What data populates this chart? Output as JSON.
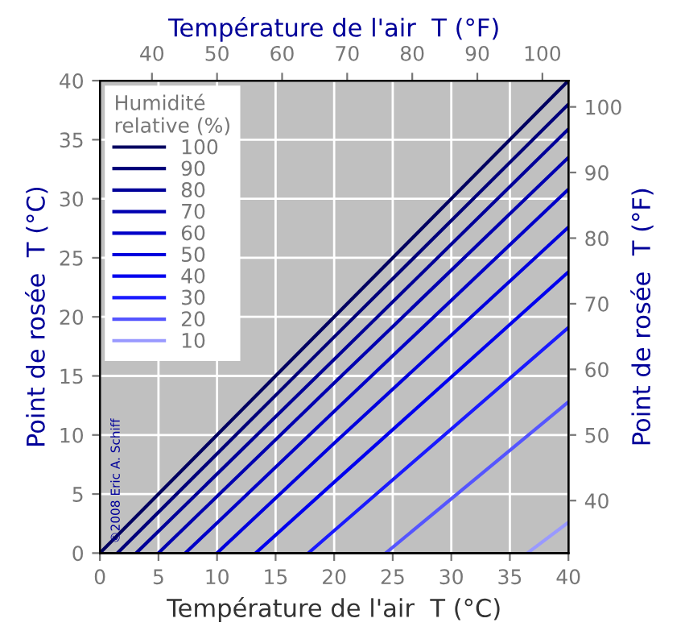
{
  "chart_data": {
    "type": "line",
    "xlabel": "Température de l'air  T (°C)",
    "ylabel": "Point de rosée  T (°C)",
    "x2label": "Température de l'air  T (°F)",
    "y2label": "Point de rosée  T (°F)",
    "legend_title": "Humidité\nrelative (%)",
    "legend": "top left",
    "grid": true,
    "xlim": [
      0,
      40
    ],
    "xticks": [
      0,
      5,
      10,
      15,
      20,
      25,
      30,
      35,
      40
    ],
    "ylim": [
      0,
      40
    ],
    "yticks": [
      0,
      5,
      10,
      15,
      20,
      25,
      30,
      35,
      40
    ],
    "x2lim": [
      32,
      104
    ],
    "x2ticks": [
      40,
      50,
      60,
      70,
      80,
      90,
      100
    ],
    "y2lim": [
      32,
      104
    ],
    "y2ticks": [
      40,
      50,
      60,
      70,
      80,
      90,
      100
    ],
    "annotations": [
      "©2008 Eric A. Schiff"
    ],
    "series": [
      {
        "name": "100",
        "color": "#000060",
        "x": [
          0,
          20,
          40
        ],
        "values": [
          0,
          20,
          40
        ]
      },
      {
        "name": "90",
        "color": "#00007a",
        "x": [
          1.5,
          20,
          40
        ],
        "values": [
          0,
          18.3,
          38
        ]
      },
      {
        "name": "80",
        "color": "#000099",
        "x": [
          3.1,
          20,
          40
        ],
        "values": [
          0,
          16.4,
          35.9
        ]
      },
      {
        "name": "70",
        "color": "#0000b0",
        "x": [
          5,
          20,
          40
        ],
        "values": [
          0,
          14.4,
          33.5
        ]
      },
      {
        "name": "60",
        "color": "#0000c8",
        "x": [
          7.3,
          20,
          40
        ],
        "values": [
          0,
          12,
          30.8
        ]
      },
      {
        "name": "50",
        "color": "#0000dd",
        "x": [
          10,
          20,
          40
        ],
        "values": [
          0,
          9.3,
          27.6
        ]
      },
      {
        "name": "40",
        "color": "#0000ee",
        "x": [
          13.3,
          20,
          40
        ],
        "values": [
          0,
          6,
          23.8
        ]
      },
      {
        "name": "30",
        "color": "#1a1aff",
        "x": [
          17.8,
          20,
          40
        ],
        "values": [
          0,
          1.9,
          19.1
        ]
      },
      {
        "name": "20",
        "color": "#5555ff",
        "x": [
          24.4,
          40
        ],
        "values": [
          0,
          12.8
        ]
      },
      {
        "name": "10",
        "color": "#9999ff",
        "x": [
          36.5,
          40
        ],
        "values": [
          0,
          2.6
        ]
      }
    ]
  }
}
